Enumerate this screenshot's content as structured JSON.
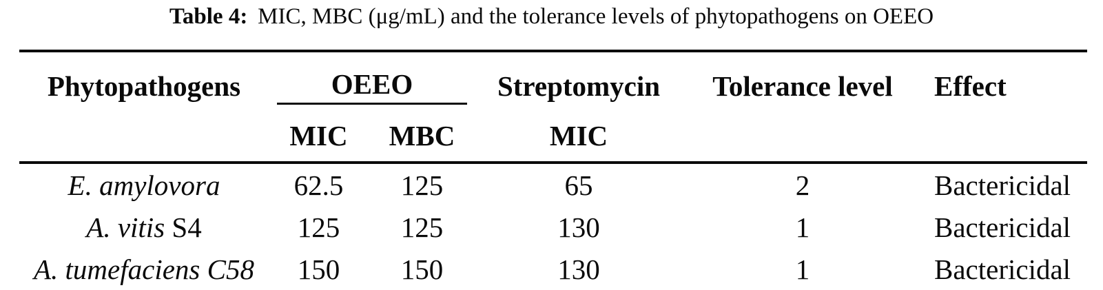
{
  "caption": {
    "label": "Table 4:",
    "text": "MIC, MBC (μg/mL) and the tolerance levels of phytopathogens on OEEO"
  },
  "table": {
    "headers": {
      "phytopathogens": "Phytopathogens",
      "oeeo_group": "OEEO",
      "streptomycin": "Streptomycin",
      "tolerance_level": "Tolerance level",
      "effect": "Effect",
      "sub": {
        "oeeo_mic": "MIC",
        "oeeo_mbc": "MBC",
        "streptomycin_mic": "MIC"
      }
    },
    "rows": [
      {
        "pathogen": {
          "italic": "E. amylovora",
          "roman": ""
        },
        "oeeo_mic": "62.5",
        "oeeo_mbc": "125",
        "streptomycin_mic": "65",
        "tolerance_level": "2",
        "effect": "Bactericidal"
      },
      {
        "pathogen": {
          "italic": "A. vitis",
          "roman": " S4"
        },
        "oeeo_mic": "125",
        "oeeo_mbc": "125",
        "streptomycin_mic": "130",
        "tolerance_level": "1",
        "effect": "Bactericidal"
      },
      {
        "pathogen": {
          "italic": "A. tumefaciens C58",
          "roman": ""
        },
        "oeeo_mic": "150",
        "oeeo_mbc": "150",
        "streptomycin_mic": "130",
        "tolerance_level": "1",
        "effect": "Bactericidal"
      }
    ]
  },
  "colors": {
    "background": "#ffffff",
    "text": "#0a0a0a",
    "rule": "#0a0a0a"
  }
}
